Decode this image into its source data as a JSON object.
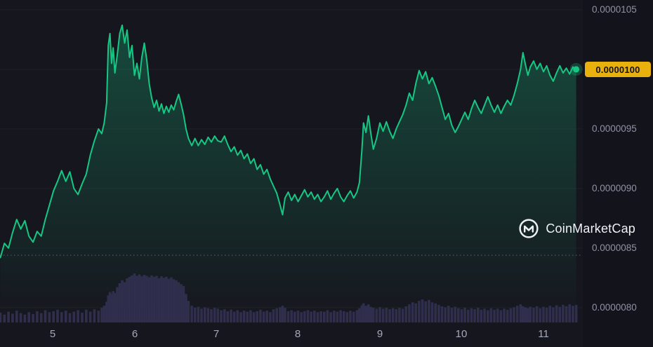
{
  "watermark": {
    "label": "CoinMarketCap"
  },
  "price_badge": {
    "value": "0.0000100"
  },
  "colors": {
    "background": "#16161E",
    "axis_background": "#13131B",
    "grid": "rgba(255,255,255,0.045)",
    "line": "#16C784",
    "fill_top": "rgba(22,199,132,0.32)",
    "fill_bottom": "rgba(22,199,132,0)",
    "volume_bar": "#2F2F4D",
    "dotted_reference": "rgba(150,154,170,0.55)",
    "badge_bg": "#E9B10E",
    "badge_text": "#12121A",
    "y_axis_text": "#8E92A4",
    "x_axis_text": "#A3A9BA",
    "watermark_text": "#F0F1F5",
    "end_dot": "#16C784",
    "end_dot_glow": "rgba(22,199,132,0.25)"
  },
  "chart_data": {
    "type": "line",
    "title": "",
    "xlabel": "",
    "ylabel": "",
    "grid": true,
    "legend_position": "none",
    "price_unit_scale": 1e-06,
    "xlim": [
      4.356,
      11.481
    ],
    "ylim": [
      7.876,
      10.582
    ],
    "reference_price": 8.44,
    "last_price": 10.0,
    "y_ticks": [
      {
        "v": 10.5,
        "label": "0.0000105"
      },
      {
        "v": 10.0,
        "label": "0.0000100"
      },
      {
        "v": 9.5,
        "label": "0.0000095"
      },
      {
        "v": 9.0,
        "label": "0.0000090"
      },
      {
        "v": 8.5,
        "label": "0.0000085"
      },
      {
        "v": 8.0,
        "label": "0.0000080"
      }
    ],
    "x_ticks": [
      {
        "v": 5,
        "label": "5"
      },
      {
        "v": 6,
        "label": "6"
      },
      {
        "v": 7,
        "label": "7"
      },
      {
        "v": 8,
        "label": "8"
      },
      {
        "v": 9,
        "label": "9"
      },
      {
        "v": 10,
        "label": "10"
      },
      {
        "v": 11,
        "label": "11"
      }
    ],
    "x": [
      4.36,
      4.41,
      4.46,
      4.51,
      4.56,
      4.61,
      4.66,
      4.71,
      4.76,
      4.81,
      4.86,
      4.91,
      4.96,
      5.01,
      5.06,
      5.11,
      5.16,
      5.21,
      5.26,
      5.31,
      5.36,
      5.41,
      5.46,
      5.51,
      5.56,
      5.6,
      5.63,
      5.66,
      5.68,
      5.7,
      5.72,
      5.74,
      5.76,
      5.79,
      5.82,
      5.85,
      5.88,
      5.91,
      5.94,
      5.97,
      6.0,
      6.03,
      6.06,
      6.09,
      6.12,
      6.15,
      6.18,
      6.21,
      6.24,
      6.27,
      6.3,
      6.33,
      6.36,
      6.39,
      6.42,
      6.45,
      6.48,
      6.51,
      6.54,
      6.57,
      6.6,
      6.63,
      6.66,
      6.7,
      6.74,
      6.78,
      6.82,
      6.86,
      6.9,
      6.94,
      6.98,
      7.02,
      7.06,
      7.1,
      7.14,
      7.18,
      7.22,
      7.26,
      7.3,
      7.34,
      7.38,
      7.42,
      7.46,
      7.5,
      7.54,
      7.58,
      7.62,
      7.66,
      7.7,
      7.74,
      7.78,
      7.81,
      7.84,
      7.88,
      7.92,
      7.96,
      8.0,
      8.04,
      8.08,
      8.12,
      8.16,
      8.2,
      8.24,
      8.28,
      8.32,
      8.36,
      8.4,
      8.44,
      8.48,
      8.52,
      8.56,
      8.6,
      8.64,
      8.68,
      8.72,
      8.75,
      8.78,
      8.8,
      8.83,
      8.86,
      8.89,
      8.92,
      8.96,
      9.0,
      9.04,
      9.08,
      9.12,
      9.16,
      9.2,
      9.24,
      9.28,
      9.32,
      9.36,
      9.4,
      9.44,
      9.48,
      9.52,
      9.56,
      9.6,
      9.64,
      9.68,
      9.72,
      9.76,
      9.8,
      9.84,
      9.88,
      9.92,
      9.96,
      10.0,
      10.04,
      10.08,
      10.12,
      10.16,
      10.2,
      10.24,
      10.28,
      10.32,
      10.36,
      10.4,
      10.44,
      10.48,
      10.52,
      10.56,
      10.6,
      10.64,
      10.68,
      10.72,
      10.75,
      10.78,
      10.81,
      10.84,
      10.88,
      10.92,
      10.96,
      11.0,
      11.04,
      11.08,
      11.12,
      11.16,
      11.2,
      11.24,
      11.28,
      11.32,
      11.36,
      11.4
    ],
    "series": [
      {
        "name": "Price",
        "values": [
          8.42,
          8.54,
          8.5,
          8.63,
          8.74,
          8.66,
          8.73,
          8.6,
          8.55,
          8.64,
          8.6,
          8.74,
          8.86,
          8.98,
          9.06,
          9.15,
          9.06,
          9.14,
          9.0,
          8.95,
          9.04,
          9.12,
          9.28,
          9.4,
          9.5,
          9.46,
          9.55,
          9.72,
          10.2,
          10.3,
          10.05,
          10.18,
          9.97,
          10.12,
          10.3,
          10.37,
          10.22,
          10.33,
          10.1,
          10.2,
          9.95,
          10.05,
          9.92,
          10.1,
          10.22,
          10.08,
          9.88,
          9.76,
          9.68,
          9.74,
          9.65,
          9.71,
          9.63,
          9.69,
          9.64,
          9.7,
          9.66,
          9.73,
          9.79,
          9.71,
          9.62,
          9.5,
          9.42,
          9.36,
          9.42,
          9.36,
          9.41,
          9.37,
          9.43,
          9.39,
          9.44,
          9.4,
          9.39,
          9.44,
          9.37,
          9.31,
          9.35,
          9.28,
          9.32,
          9.25,
          9.29,
          9.21,
          9.25,
          9.16,
          9.2,
          9.12,
          9.16,
          9.08,
          9.02,
          8.96,
          8.86,
          8.78,
          8.92,
          8.97,
          8.9,
          8.95,
          8.89,
          8.94,
          8.99,
          8.93,
          8.97,
          8.91,
          8.95,
          8.89,
          8.93,
          8.98,
          8.91,
          8.96,
          9.0,
          8.93,
          8.89,
          8.94,
          8.98,
          8.92,
          8.97,
          9.05,
          9.32,
          9.55,
          9.47,
          9.61,
          9.46,
          9.33,
          9.42,
          9.55,
          9.48,
          9.56,
          9.48,
          9.42,
          9.5,
          9.56,
          9.62,
          9.7,
          9.8,
          9.74,
          9.88,
          9.99,
          9.92,
          9.98,
          9.88,
          9.93,
          9.86,
          9.78,
          9.68,
          9.58,
          9.63,
          9.53,
          9.47,
          9.52,
          9.58,
          9.64,
          9.58,
          9.67,
          9.74,
          9.68,
          9.63,
          9.7,
          9.77,
          9.7,
          9.64,
          9.7,
          9.63,
          9.69,
          9.74,
          9.7,
          9.78,
          9.88,
          10.0,
          10.14,
          10.04,
          9.95,
          10.02,
          10.07,
          10.0,
          10.05,
          9.98,
          10.03,
          9.95,
          9.9,
          9.97,
          10.03,
          9.97,
          10.01,
          9.96,
          10.02,
          10.0
        ]
      },
      {
        "name": "Volume",
        "unit": "relative_0_100",
        "values": [
          20,
          16,
          22,
          18,
          24,
          19,
          16,
          21,
          17,
          23,
          19,
          25,
          21,
          23,
          26,
          21,
          24,
          19,
          22,
          25,
          20,
          26,
          22,
          27,
          24,
          30,
          34,
          42,
          55,
          62,
          58,
          64,
          60,
          72,
          80,
          86,
          82,
          90,
          93,
          96,
          100,
          95,
          98,
          94,
          97,
          95,
          92,
          96,
          93,
          95,
          90,
          94,
          91,
          93,
          89,
          92,
          88,
          86,
          82,
          78,
          74,
          58,
          44,
          34,
          30,
          32,
          28,
          31,
          29,
          27,
          30,
          28,
          25,
          27,
          23,
          26,
          22,
          25,
          21,
          24,
          22,
          25,
          21,
          23,
          26,
          22,
          24,
          21,
          27,
          29,
          31,
          34,
          30,
          23,
          25,
          22,
          24,
          21,
          23,
          25,
          22,
          24,
          21,
          23,
          22,
          25,
          21,
          24,
          22,
          25,
          23,
          21,
          24,
          22,
          25,
          29,
          35,
          39,
          34,
          37,
          32,
          30,
          28,
          31,
          28,
          30,
          27,
          29,
          27,
          30,
          28,
          33,
          37,
          41,
          39,
          44,
          47,
          43,
          46,
          41,
          39,
          36,
          33,
          31,
          34,
          30,
          32,
          29,
          27,
          30,
          26,
          29,
          27,
          30,
          26,
          28,
          25,
          29,
          26,
          28,
          25,
          28,
          26,
          29,
          31,
          34,
          37,
          33,
          31,
          29,
          32,
          30,
          33,
          29,
          32,
          30,
          34,
          31,
          35,
          32,
          36,
          33,
          37,
          34,
          36
        ]
      }
    ]
  }
}
